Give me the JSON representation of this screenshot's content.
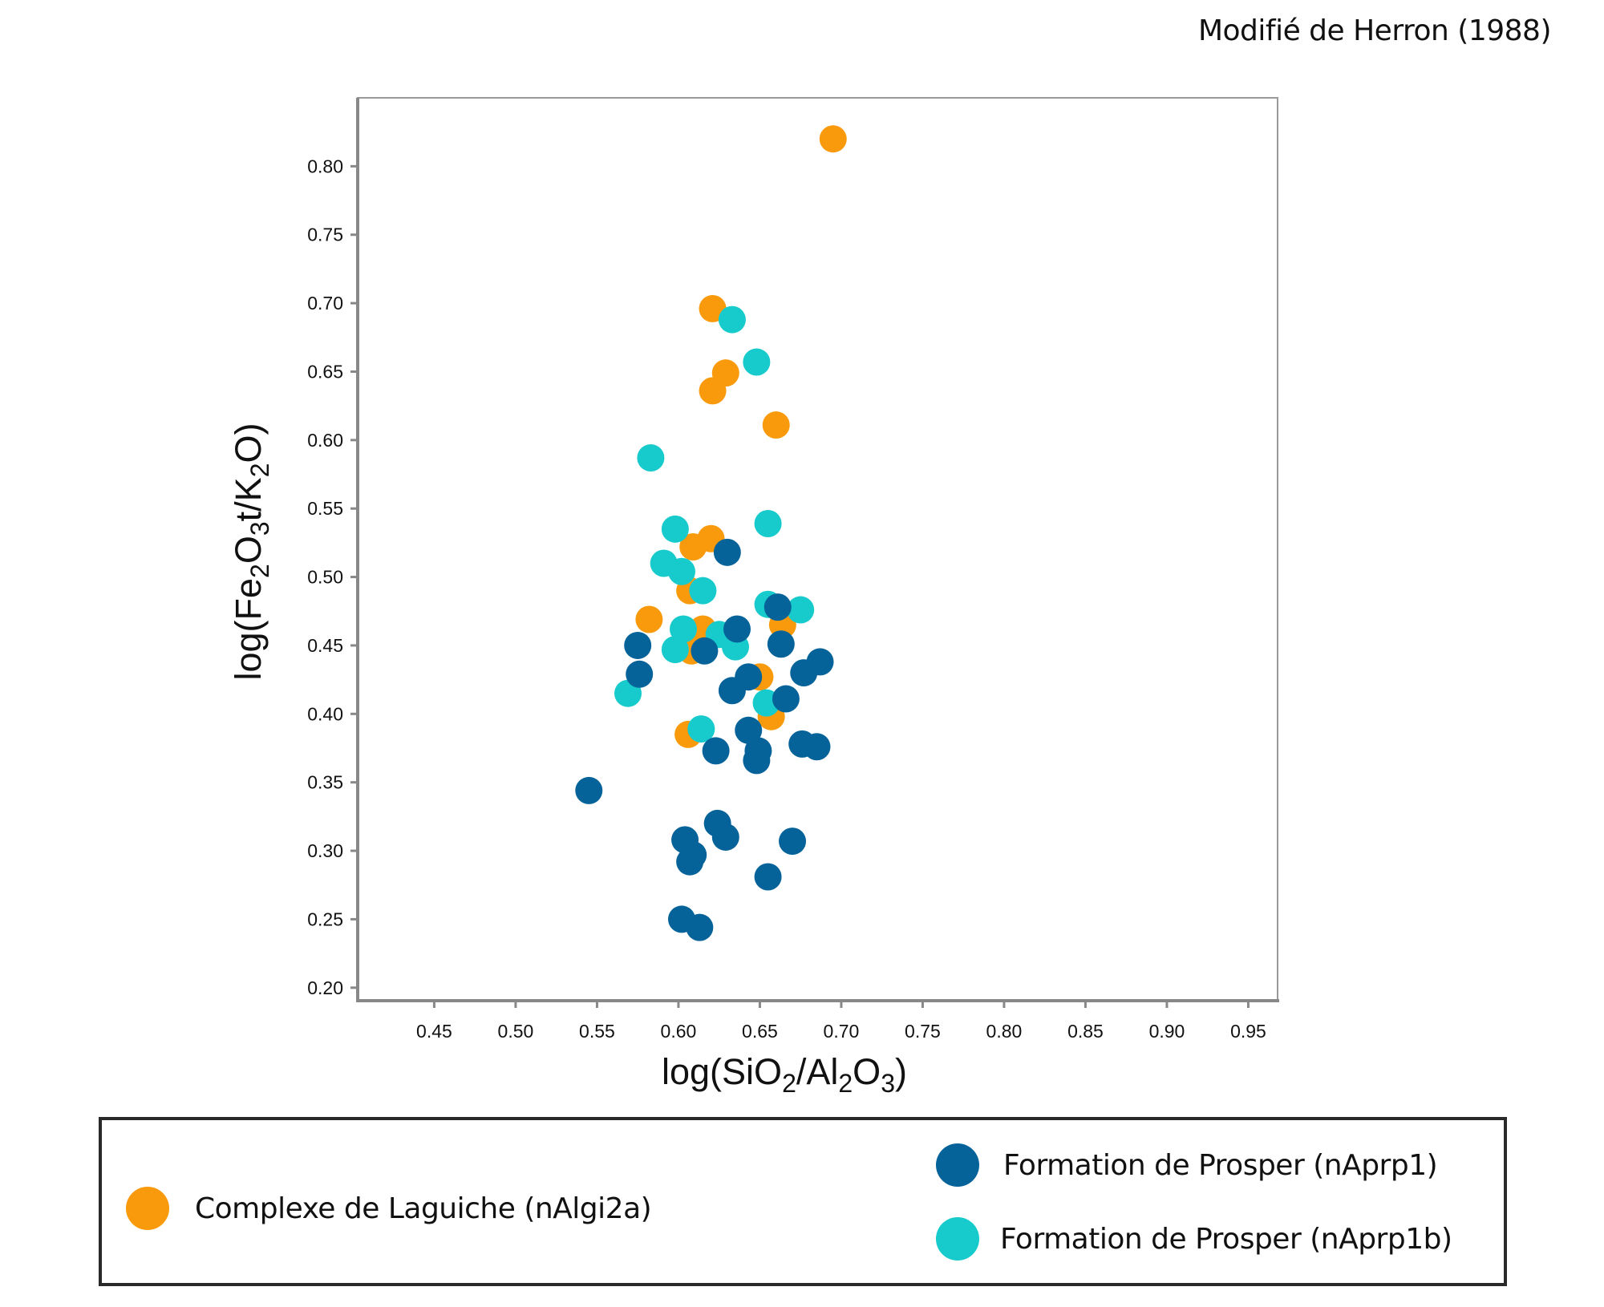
{
  "source_note": "Modifié de Herron (1988)",
  "chart_data": {
    "type": "scatter",
    "title": "",
    "xlabel": "log(SiO2/Al2O3)",
    "ylabel": "log(Fe2O3t/K2O)",
    "xlabel_parts": [
      {
        "t": "log(SiO"
      },
      {
        "t": "2",
        "sub": true
      },
      {
        "t": "/Al"
      },
      {
        "t": "2",
        "sub": true
      },
      {
        "t": "O"
      },
      {
        "t": "3",
        "sub": true
      },
      {
        "t": ")"
      }
    ],
    "ylabel_parts": [
      {
        "t": "log(Fe"
      },
      {
        "t": "2",
        "sub": true
      },
      {
        "t": "O"
      },
      {
        "t": "3",
        "sub": true
      },
      {
        "t": "t/K"
      },
      {
        "t": "2",
        "sub": true
      },
      {
        "t": "O)"
      }
    ],
    "xlim": [
      0.403,
      0.968
    ],
    "ylim": [
      0.1905,
      0.85
    ],
    "xticks": [
      0.45,
      0.5,
      0.55,
      0.6,
      0.65,
      0.7,
      0.75,
      0.8,
      0.85,
      0.9,
      0.95
    ],
    "xtick_labels": [
      "0.45",
      "0.50",
      "0.55",
      "0.60",
      "0.65",
      "0.70",
      "0.75",
      "0.80",
      "0.85",
      "0.90",
      "0.95"
    ],
    "yticks": [
      0.2,
      0.25,
      0.3,
      0.35,
      0.4,
      0.45,
      0.5,
      0.55,
      0.6,
      0.65,
      0.7,
      0.75,
      0.8
    ],
    "ytick_labels": [
      "0.20",
      "0.25",
      "0.30",
      "0.35",
      "0.40",
      "0.45",
      "0.50",
      "0.55",
      "0.60",
      "0.65",
      "0.70",
      "0.75",
      "0.80"
    ],
    "grid": false,
    "legend_position": "bottom",
    "series": [
      {
        "name": "Complexe de Laguiche (nAlgi2a)",
        "color": "#F99A0C",
        "points": [
          [
            0.695,
            0.82
          ],
          [
            0.621,
            0.696
          ],
          [
            0.629,
            0.649
          ],
          [
            0.621,
            0.636
          ],
          [
            0.66,
            0.611
          ],
          [
            0.62,
            0.528
          ],
          [
            0.609,
            0.522
          ],
          [
            0.607,
            0.49
          ],
          [
            0.582,
            0.469
          ],
          [
            0.615,
            0.462
          ],
          [
            0.608,
            0.446
          ],
          [
            0.664,
            0.465
          ],
          [
            0.65,
            0.427
          ],
          [
            0.657,
            0.398
          ],
          [
            0.606,
            0.385
          ]
        ]
      },
      {
        "name": "Formation de Prosper (nAprp1b)",
        "color": "#17CACB",
        "points": [
          [
            0.633,
            0.688
          ],
          [
            0.648,
            0.657
          ],
          [
            0.583,
            0.587
          ],
          [
            0.598,
            0.535
          ],
          [
            0.655,
            0.539
          ],
          [
            0.591,
            0.51
          ],
          [
            0.602,
            0.504
          ],
          [
            0.615,
            0.49
          ],
          [
            0.655,
            0.48
          ],
          [
            0.675,
            0.476
          ],
          [
            0.603,
            0.462
          ],
          [
            0.598,
            0.447
          ],
          [
            0.625,
            0.458
          ],
          [
            0.635,
            0.449
          ],
          [
            0.569,
            0.415
          ],
          [
            0.654,
            0.408
          ],
          [
            0.614,
            0.389
          ]
        ]
      },
      {
        "name": "Formation de Prosper (nAprp1)",
        "color": "#06639A",
        "points": [
          [
            0.63,
            0.518
          ],
          [
            0.661,
            0.478
          ],
          [
            0.575,
            0.45
          ],
          [
            0.576,
            0.429
          ],
          [
            0.616,
            0.446
          ],
          [
            0.636,
            0.462
          ],
          [
            0.663,
            0.451
          ],
          [
            0.687,
            0.438
          ],
          [
            0.677,
            0.43
          ],
          [
            0.643,
            0.427
          ],
          [
            0.633,
            0.417
          ],
          [
            0.666,
            0.411
          ],
          [
            0.643,
            0.388
          ],
          [
            0.623,
            0.373
          ],
          [
            0.649,
            0.373
          ],
          [
            0.648,
            0.366
          ],
          [
            0.676,
            0.378
          ],
          [
            0.685,
            0.376
          ],
          [
            0.545,
            0.344
          ],
          [
            0.624,
            0.32
          ],
          [
            0.629,
            0.31
          ],
          [
            0.604,
            0.308
          ],
          [
            0.609,
            0.297
          ],
          [
            0.607,
            0.292
          ],
          [
            0.67,
            0.307
          ],
          [
            0.655,
            0.281
          ],
          [
            0.602,
            0.25
          ],
          [
            0.613,
            0.244
          ]
        ]
      }
    ]
  },
  "legend": {
    "items": [
      {
        "label": "Complexe de Laguiche (nAlgi2a)",
        "color": "#F99A0C"
      },
      {
        "label": "Formation de Prosper (nAprp1)",
        "color": "#06639A"
      },
      {
        "label": "Formation de Prosper (nAprp1b)",
        "color": "#17CACB"
      }
    ]
  }
}
